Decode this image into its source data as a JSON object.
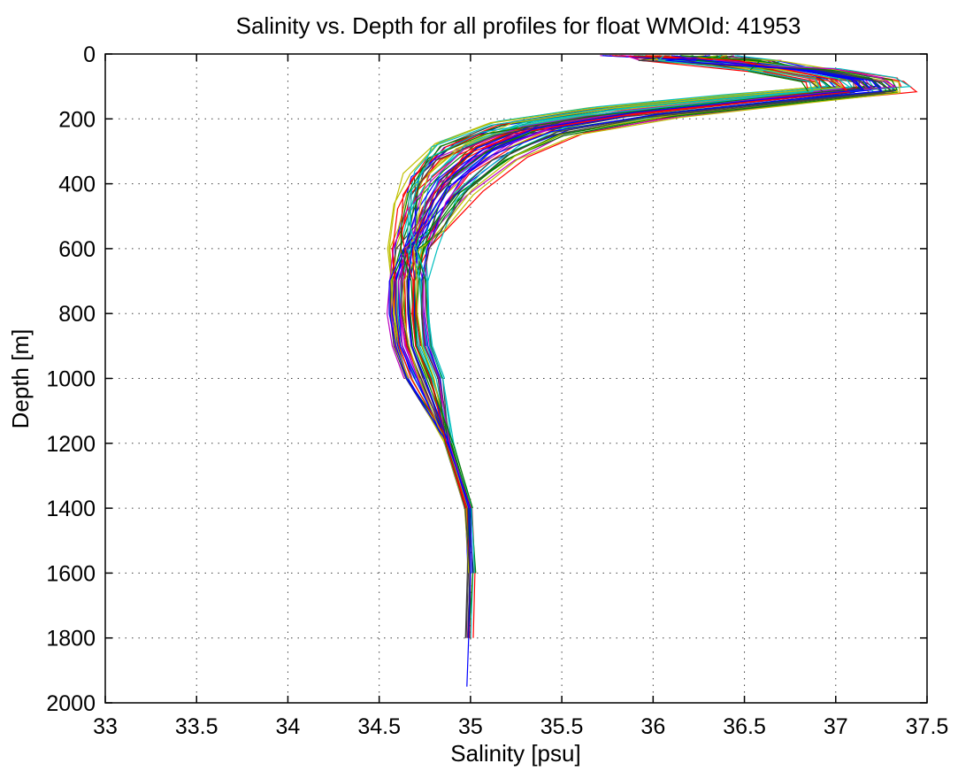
{
  "chart_data": {
    "type": "line",
    "title": "Salinity vs. Depth for all profiles for float WMOId: 41953",
    "xlabel": "Salinity [psu]",
    "ylabel": "Depth [m]",
    "xlim": [
      33,
      37.5
    ],
    "ylim": [
      0,
      2000
    ],
    "y_axis_inverted": true,
    "grid": true,
    "legend": "none",
    "x_ticks": [
      "33",
      "33.5",
      "34",
      "34.5",
      "35",
      "35.5",
      "36",
      "36.5",
      "37",
      "37.5"
    ],
    "y_ticks": [
      "0",
      "200",
      "400",
      "600",
      "800",
      "1000",
      "1200",
      "1400",
      "1600",
      "1800",
      "2000"
    ],
    "series_colors": [
      "#0000ff",
      "#008000",
      "#ff0000",
      "#00bfbf",
      "#bf00bf",
      "#bfbf00",
      "#404040"
    ],
    "representative_profile": {
      "depth": [
        5,
        20,
        50,
        80,
        110,
        140,
        180,
        230,
        300,
        400,
        500,
        600,
        700,
        800,
        900,
        1000,
        1200,
        1400,
        1600,
        1800,
        1950
      ],
      "salinity": [
        36.1,
        36.3,
        36.8,
        37.1,
        37.15,
        36.6,
        35.9,
        35.35,
        35.05,
        34.85,
        34.75,
        34.68,
        34.66,
        34.66,
        34.68,
        34.75,
        34.88,
        34.99,
        35.0,
        34.99,
        34.98
      ]
    }
  }
}
